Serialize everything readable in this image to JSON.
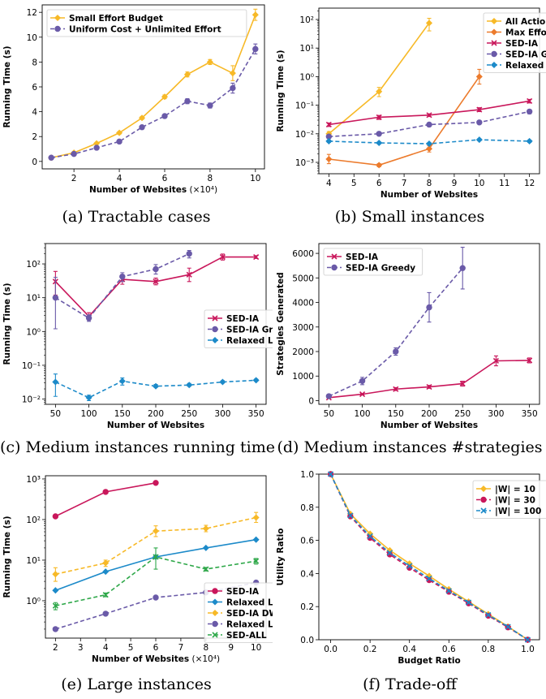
{
  "captions": [
    "(a) Tractable cases",
    "(b) Small instances",
    "(c) Medium instances running time",
    "(d) Medium instances #strategies",
    "(e) Large instances",
    "(f) Trade-off"
  ],
  "chart_data": [
    {
      "id": "a",
      "type": "line",
      "xlabel": "Number of Websites",
      "xlabel_suffix": "(×10⁴)",
      "ylabel": "Running Time (s)",
      "xlim": [
        0.6,
        10.4
      ],
      "ylim": [
        -0.6,
        12.6
      ],
      "xticks": [
        2,
        4,
        6,
        8,
        10
      ],
      "yticks": [
        0,
        2,
        4,
        6,
        8,
        10,
        12
      ],
      "legend": "top-left",
      "legend_box": [
        6,
        6
      ],
      "series": [
        {
          "name": "Small Effort Budget",
          "color": "#F7B927",
          "dash": "",
          "marker": "diamond",
          "x": [
            1,
            2,
            3,
            4,
            5,
            6,
            7,
            8,
            9,
            10
          ],
          "y": [
            0.3,
            0.7,
            1.45,
            2.3,
            3.5,
            5.2,
            7.0,
            8.0,
            7.1,
            11.8
          ],
          "err": [
            0.05,
            0.06,
            0.08,
            0.1,
            0.12,
            0.15,
            0.2,
            0.2,
            0.6,
            0.45
          ]
        },
        {
          "name": "Uniform Cost + Unlimited Effort",
          "color": "#6A5AA8",
          "dash": "5,3",
          "marker": "circle",
          "x": [
            1,
            2,
            3,
            4,
            5,
            6,
            7,
            8,
            9,
            10
          ],
          "y": [
            0.3,
            0.6,
            1.1,
            1.6,
            2.75,
            3.65,
            4.85,
            4.5,
            5.9,
            9.05
          ],
          "err": [
            0.05,
            0.05,
            0.08,
            0.1,
            0.12,
            0.12,
            0.2,
            0.2,
            0.4,
            0.4
          ]
        }
      ]
    },
    {
      "id": "b",
      "type": "line",
      "xlabel": "Number of Websites",
      "ylabel": "Running Time (s)",
      "ylog": true,
      "xlim": [
        3.6,
        12.4
      ],
      "ylim": [
        0.0004,
        250
      ],
      "xticks": [
        4,
        5,
        6,
        7,
        8,
        9,
        10,
        11,
        12
      ],
      "yticks": [
        0.001,
        0.01,
        0.1,
        1,
        10,
        100
      ],
      "yticklabels": [
        "10⁻³",
        "10⁻²",
        "10⁻¹",
        "10⁰",
        "10¹",
        "10²"
      ],
      "legend": "top-right",
      "legend_box": [
        203,
        6
      ],
      "series": [
        {
          "name": "All Actions",
          "color": "#F7B927",
          "dash": "",
          "marker": "diamond",
          "x": [
            4,
            6,
            8
          ],
          "y": [
            0.01,
            0.3,
            75
          ],
          "errlo": [
            0.008,
            0.2,
            40
          ],
          "errhi": [
            0.012,
            0.42,
            110
          ]
        },
        {
          "name": "Max Effort",
          "color": "#EC7B2C",
          "dash": "",
          "marker": "diamond",
          "x": [
            4,
            6,
            8,
            10
          ],
          "y": [
            0.0013,
            0.0008,
            0.003,
            1.0
          ],
          "errlo": [
            0.0009,
            0.0007,
            0.0023,
            0.55
          ],
          "errhi": [
            0.0019,
            0.0009,
            0.0038,
            1.8
          ]
        },
        {
          "name": "SED-IA",
          "color": "#C9175B",
          "dash": "",
          "marker": "x",
          "x": [
            4,
            6,
            8,
            10,
            12
          ],
          "y": [
            0.021,
            0.038,
            0.045,
            0.07,
            0.14
          ],
          "errlo": [
            0.018,
            0.032,
            0.04,
            0.06,
            0.12
          ],
          "errhi": [
            0.024,
            0.044,
            0.05,
            0.082,
            0.16
          ]
        },
        {
          "name": "SED-IA Greedy",
          "color": "#6A5AA8",
          "dash": "5,3",
          "marker": "circle",
          "x": [
            4,
            6,
            8,
            10,
            12
          ],
          "y": [
            0.008,
            0.01,
            0.021,
            0.025,
            0.06
          ],
          "errlo": [
            0.007,
            0.009,
            0.018,
            0.022,
            0.05
          ],
          "errhi": [
            0.009,
            0.011,
            0.024,
            0.028,
            0.07
          ]
        },
        {
          "name": "Relaxed LP",
          "color": "#1C8AC9",
          "dash": "5,3",
          "marker": "diamond",
          "x": [
            4,
            6,
            8,
            10,
            12
          ],
          "y": [
            0.0055,
            0.0048,
            0.0045,
            0.0062,
            0.0055
          ],
          "errlo": [
            0.005,
            0.0044,
            0.0041,
            0.0057,
            0.005
          ],
          "errhi": [
            0.006,
            0.0052,
            0.0049,
            0.0067,
            0.006
          ]
        }
      ]
    },
    {
      "id": "c",
      "type": "line",
      "xlabel": "Number of Websites",
      "ylabel": "Running Time (s)",
      "ylog": true,
      "xlim": [
        35,
        365
      ],
      "ylim": [
        0.007,
        400
      ],
      "xticks": [
        50,
        100,
        150,
        200,
        250,
        300,
        350
      ],
      "yticks": [
        0.01,
        0.1,
        1,
        10,
        100
      ],
      "yticklabels": [
        "10⁻²",
        "10⁻¹",
        "10⁰",
        "10¹",
        "10²"
      ],
      "legend": "center-right",
      "legend_box": [
        196,
        82
      ],
      "series": [
        {
          "name": "SED-IA",
          "color": "#C9175B",
          "dash": "",
          "marker": "x",
          "x": [
            50,
            100,
            150,
            200,
            250,
            300,
            350
          ],
          "y": [
            30,
            2.8,
            35,
            30,
            48,
            160,
            160
          ],
          "errlo": [
            12,
            2.2,
            25,
            24,
            30,
            130,
            145
          ],
          "errhi": [
            60,
            3.6,
            48,
            38,
            75,
            195,
            175
          ]
        },
        {
          "name": "SED-IA Greedy",
          "color": "#6A5AA8",
          "dash": "5,3",
          "marker": "circle",
          "x": [
            50,
            100,
            150,
            200,
            250
          ],
          "y": [
            10,
            2.5,
            42,
            70,
            200
          ],
          "errlo": [
            1.2,
            2.0,
            30,
            50,
            150
          ],
          "errhi": [
            40,
            3.1,
            55,
            95,
            250
          ]
        },
        {
          "name": "Relaxed LP",
          "color": "#1C8AC9",
          "dash": "5,3",
          "marker": "diamond",
          "x": [
            50,
            100,
            150,
            200,
            250,
            300,
            350
          ],
          "y": [
            0.032,
            0.011,
            0.034,
            0.024,
            0.026,
            0.032,
            0.036
          ],
          "errlo": [
            0.012,
            0.009,
            0.026,
            0.022,
            0.024,
            0.03,
            0.034
          ],
          "errhi": [
            0.055,
            0.013,
            0.042,
            0.027,
            0.029,
            0.035,
            0.039
          ]
        }
      ]
    },
    {
      "id": "d",
      "type": "line",
      "xlabel": "Number of Websites",
      "ylabel": "Strategies Generated",
      "xlim": [
        35,
        365
      ],
      "ylim": [
        -150,
        6400
      ],
      "xticks": [
        50,
        100,
        150,
        200,
        250,
        300,
        350
      ],
      "yticks": [
        0,
        1000,
        2000,
        3000,
        4000,
        5000,
        6000
      ],
      "legend": "top-left",
      "legend_box": [
        6,
        6
      ],
      "series": [
        {
          "name": "SED-IA",
          "color": "#C9175B",
          "dash": "",
          "marker": "x",
          "x": [
            50,
            100,
            150,
            200,
            250,
            300,
            350
          ],
          "y": [
            120,
            260,
            470,
            560,
            690,
            1620,
            1640
          ],
          "err": [
            20,
            30,
            60,
            60,
            100,
            200,
            100
          ]
        },
        {
          "name": "SED-IA Greedy",
          "color": "#6A5AA8",
          "dash": "5,3",
          "marker": "circle",
          "x": [
            50,
            100,
            150,
            200,
            250
          ],
          "y": [
            180,
            800,
            2000,
            3800,
            5400
          ],
          "err": [
            40,
            150,
            150,
            600,
            850
          ]
        }
      ]
    },
    {
      "id": "e",
      "type": "line",
      "xlabel": "Number of Websites",
      "xlabel_suffix": "(×10⁴)",
      "ylabel": "Running Time (s)",
      "ylog": true,
      "xlim": [
        1.6,
        10.4
      ],
      "ylim": [
        0.12,
        1200
      ],
      "xticks": [
        2,
        3,
        4,
        5,
        6,
        7,
        8,
        9,
        10
      ],
      "yticks": [
        1,
        10,
        100,
        1000
      ],
      "yticklabels": [
        "10⁰",
        "10¹",
        "10²",
        "10³"
      ],
      "legend": "bottom-right",
      "legend_box": [
        196,
        132
      ],
      "series": [
        {
          "name": "SED-IA",
          "color": "#C9175B",
          "dash": "",
          "marker": "circle",
          "x": [
            2,
            4,
            6
          ],
          "y": [
            120,
            480,
            800
          ]
        },
        {
          "name": "Relaxed LP",
          "color": "#1C8AC9",
          "dash": "",
          "marker": "diamond",
          "x": [
            2,
            4,
            6,
            8,
            10
          ],
          "y": [
            1.8,
            5.2,
            12,
            20,
            32
          ]
        },
        {
          "name": "SED-IA DWE",
          "color": "#F7B927",
          "dash": "5,3",
          "marker": "diamond",
          "x": [
            2,
            4,
            6,
            8,
            10
          ],
          "y": [
            4.5,
            8.5,
            52,
            60,
            112
          ],
          "errlo": [
            3,
            7,
            38,
            50,
            85
          ],
          "errhi": [
            6.5,
            10,
            70,
            72,
            150
          ]
        },
        {
          "name": "Relaxed LP DWE",
          "color": "#6A5AA8",
          "dash": "5,3",
          "marker": "circle",
          "x": [
            2,
            4,
            6,
            8,
            10
          ],
          "y": [
            0.2,
            0.48,
            1.2,
            1.6,
            2.8
          ]
        },
        {
          "name": "SED-ALL",
          "color": "#2FA84A",
          "dash": "5,3",
          "marker": "x",
          "x": [
            2,
            4,
            6,
            8,
            10
          ],
          "y": [
            0.75,
            1.4,
            12,
            6,
            9.5
          ],
          "errlo": [
            0.6,
            1.25,
            6,
            5.4,
            8
          ],
          "errhi": [
            0.9,
            1.55,
            20,
            6.6,
            11
          ]
        }
      ]
    },
    {
      "id": "f",
      "type": "line",
      "xlabel": "Budget Ratio",
      "ylabel": "Utility Ratio",
      "xlim": [
        -0.06,
        1.06
      ],
      "ylim": [
        0,
        1.0
      ],
      "xticks": [
        0,
        0.2,
        0.4,
        0.6,
        0.8,
        1.0
      ],
      "xticklabels": [
        "0.0",
        "0.2",
        "0.4",
        "0.6",
        "0.8",
        "1.0"
      ],
      "yticks": [
        0,
        0.2,
        0.4,
        0.6,
        0.8,
        1.0
      ],
      "yticklabels": [
        "0.0",
        "0.2",
        "0.4",
        "0.6",
        "0.8",
        "1.0"
      ],
      "legend": "top-right",
      "legend_box": [
        190,
        8
      ],
      "series": [
        {
          "name": "|W| = 10",
          "color": "#F7B927",
          "dash": "",
          "marker": "diamond",
          "x": [
            0,
            0.1,
            0.2,
            0.3,
            0.4,
            0.5,
            0.6,
            0.7,
            0.8,
            0.9,
            1.0
          ],
          "y": [
            1.0,
            0.76,
            0.64,
            0.54,
            0.46,
            0.385,
            0.305,
            0.23,
            0.155,
            0.08,
            0.0
          ]
        },
        {
          "name": "|W| = 30",
          "color": "#C9175B",
          "dash": "5,3",
          "marker": "circle",
          "x": [
            0,
            0.1,
            0.2,
            0.3,
            0.4,
            0.5,
            0.6,
            0.7,
            0.8,
            0.9,
            1.0
          ],
          "y": [
            1.0,
            0.745,
            0.615,
            0.515,
            0.435,
            0.36,
            0.29,
            0.22,
            0.145,
            0.075,
            0.0
          ]
        },
        {
          "name": "|W| = 100",
          "color": "#1C8AC9",
          "dash": "5,3",
          "marker": "x",
          "x": [
            0,
            0.1,
            0.2,
            0.3,
            0.4,
            0.5,
            0.6,
            0.7,
            0.8,
            0.9,
            1.0
          ],
          "y": [
            1.0,
            0.75,
            0.625,
            0.525,
            0.445,
            0.37,
            0.295,
            0.225,
            0.15,
            0.078,
            0.0
          ]
        }
      ]
    }
  ]
}
